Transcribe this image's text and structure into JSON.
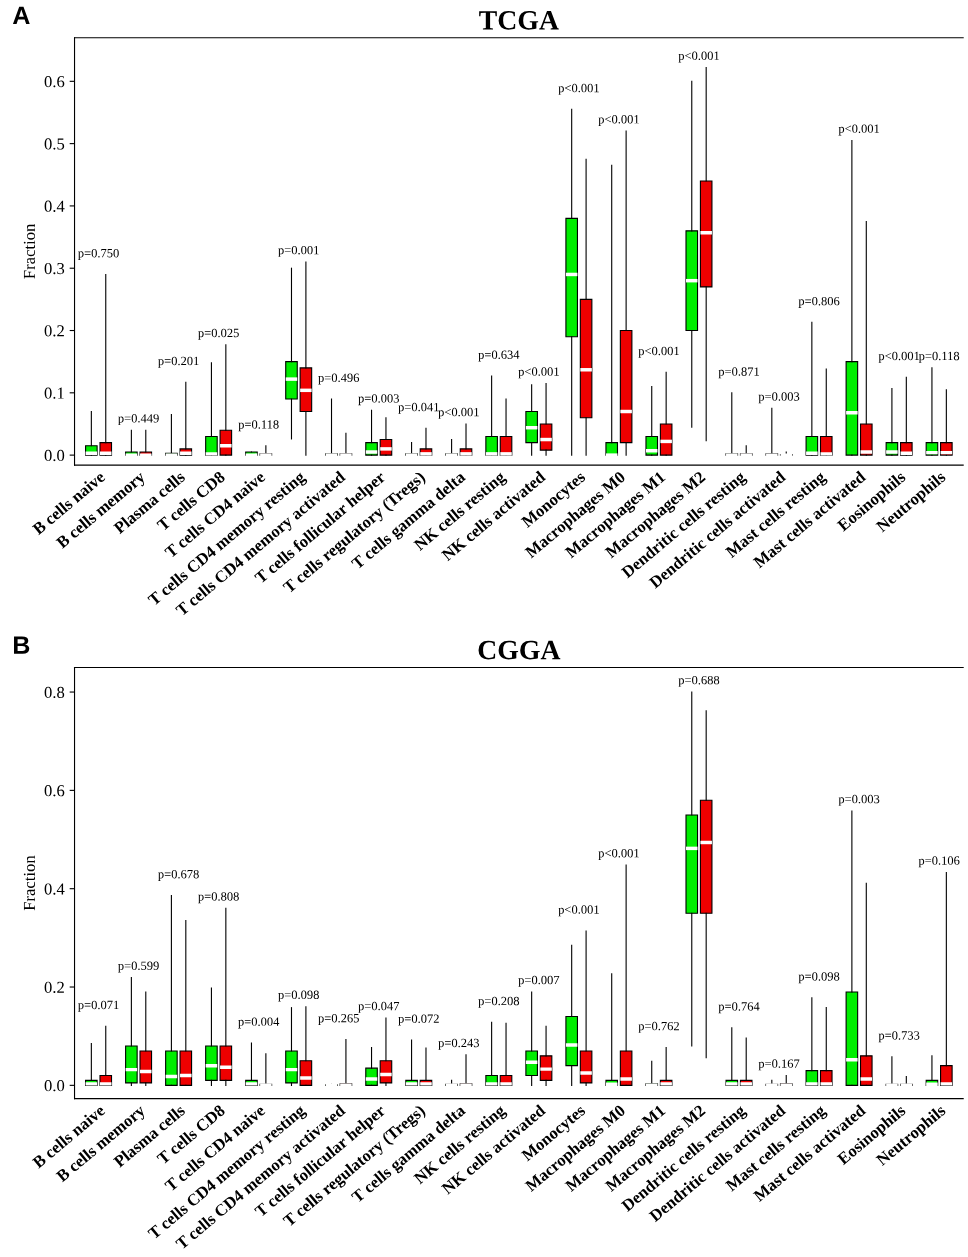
{
  "chart_data": [
    {
      "type": "box",
      "title": "TCGA",
      "ylabel": "Fraction",
      "categories": [
        "B cells naive",
        "B cells memory",
        "Plasma cells",
        "T cells CD8",
        "T cells CD4 naive",
        "T cells CD4 memory resting",
        "T cells CD4 memory activated",
        "T cells follicular helper",
        "T cells regulatory (Tregs)",
        "T cells gamma delta",
        "NK cells resting",
        "NK cells activated",
        "Monocytes",
        "Macrophages M0",
        "Macrophages M1",
        "Macrophages M2",
        "Dendritic cells resting",
        "Dendritic cells activated",
        "Mast cells resting",
        "Mast cells activated",
        "Eosinophils",
        "Neutrophils"
      ],
      "subtitle": "A",
      "ylim": [
        -0.016,
        0.67
      ],
      "yticks": [
        {
          "value": 0,
          "label": "0.0"
        },
        0.1,
        0.2,
        0.3,
        0.4,
        0.5,
        0.6
      ],
      "series": [
        {
          "color": "#00ee00",
          "boxes": [
            {
              "low": 0,
              "q1": 0,
              "median": 0.003,
              "q3": 0.015,
              "high": 0.07
            },
            {
              "low": 0,
              "q1": 0,
              "median": 0.0,
              "q3": 0.005,
              "high": 0.04
            },
            {
              "low": 0,
              "q1": 0,
              "median": 0.0,
              "q3": 0.003,
              "high": 0.065
            },
            {
              "low": 0,
              "q1": 0,
              "median": 0.002,
              "q3": 0.03,
              "high": 0.148
            },
            {
              "low": 0,
              "q1": 0,
              "median": 0,
              "q3": 0.005,
              "high": 0.005
            },
            {
              "low": 0.026,
              "q1": 0.09,
              "median": 0.122,
              "q3": 0.15,
              "high": 0.3
            },
            {
              "low": 0,
              "q1": 0,
              "median": 0,
              "q3": 0.002,
              "high": 0.09
            },
            {
              "low": 0,
              "q1": 0,
              "median": 0.005,
              "q3": 0.02,
              "high": 0.072
            },
            {
              "low": 0,
              "q1": 0,
              "median": 0,
              "q3": 0.002,
              "high": 0.02
            },
            {
              "low": 0,
              "q1": 0,
              "median": 0,
              "q3": 0.002,
              "high": 0.025
            },
            {
              "low": 0,
              "q1": 0,
              "median": 0.002,
              "q3": 0.03,
              "high": 0.127
            },
            {
              "low": 0,
              "q1": 0.02,
              "median": 0.044,
              "q3": 0.07,
              "high": 0.113
            },
            {
              "low": 0,
              "q1": 0.19,
              "median": 0.29,
              "q3": 0.38,
              "high": 0.555
            },
            {
              "low": 0,
              "q1": 0,
              "median": 0.0,
              "q3": 0.02,
              "high": 0.465
            },
            {
              "low": 0,
              "q1": 0,
              "median": 0.007,
              "q3": 0.03,
              "high": 0.11
            },
            {
              "low": 0.045,
              "q1": 0.2,
              "median": 0.28,
              "q3": 0.36,
              "high": 0.6
            },
            {
              "low": 0,
              "q1": 0,
              "median": 0,
              "q3": 0.002,
              "high": 0.1
            },
            {
              "low": 0,
              "q1": 0,
              "median": 0,
              "q3": 0.002,
              "high": 0.075
            },
            {
              "low": 0,
              "q1": 0,
              "median": 0.003,
              "q3": 0.03,
              "high": 0.213
            },
            {
              "low": 0,
              "q1": 0,
              "median": 0.068,
              "q3": 0.15,
              "high": 0.505
            },
            {
              "low": 0,
              "q1": 0,
              "median": 0.005,
              "q3": 0.02,
              "high": 0.107
            },
            {
              "low": 0,
              "q1": 0,
              "median": 0.004,
              "q3": 0.02,
              "high": 0.14
            }
          ]
        },
        {
          "color": "#ee0000",
          "boxes": [
            {
              "low": 0,
              "q1": 0,
              "median": 0.003,
              "q3": 0.02,
              "high": 0.29
            },
            {
              "low": 0,
              "q1": 0,
              "median": 0.0,
              "q3": 0.005,
              "high": 0.04
            },
            {
              "low": 0,
              "q1": 0,
              "median": 0.003,
              "q3": 0.01,
              "high": 0.117
            },
            {
              "low": 0,
              "q1": 0,
              "median": 0.015,
              "q3": 0.04,
              "high": 0.177
            },
            {
              "low": 0,
              "q1": 0,
              "median": 0,
              "q3": 0.002,
              "high": 0.015
            },
            {
              "low": 0,
              "q1": 0.07,
              "median": 0.104,
              "q3": 0.14,
              "high": 0.31
            },
            {
              "low": 0,
              "q1": 0,
              "median": 0,
              "q3": 0.002,
              "high": 0.035
            },
            {
              "low": 0,
              "q1": 0,
              "median": 0.01,
              "q3": 0.025,
              "high": 0.06
            },
            {
              "low": 0,
              "q1": 0,
              "median": 0.002,
              "q3": 0.01,
              "high": 0.043
            },
            {
              "low": 0,
              "q1": 0,
              "median": 0.002,
              "q3": 0.01,
              "high": 0.05
            },
            {
              "low": 0,
              "q1": 0,
              "median": 0.002,
              "q3": 0.03,
              "high": 0.09
            },
            {
              "low": 0,
              "q1": 0.008,
              "median": 0.025,
              "q3": 0.05,
              "high": 0.115
            },
            {
              "low": 0,
              "q1": 0.06,
              "median": 0.137,
              "q3": 0.25,
              "high": 0.475
            },
            {
              "low": 0,
              "q1": 0.02,
              "median": 0.07,
              "q3": 0.2,
              "high": 0.52
            },
            {
              "low": 0,
              "q1": 0,
              "median": 0.022,
              "q3": 0.05,
              "high": 0.133
            },
            {
              "low": 0.023,
              "q1": 0.27,
              "median": 0.357,
              "q3": 0.44,
              "high": 0.622
            },
            {
              "low": 0,
              "q1": 0,
              "median": 0,
              "q3": 0.002,
              "high": 0.015
            },
            {
              "low": 0,
              "q1": 0,
              "median": 0,
              "q3": 0.001,
              "high": 0.005
            },
            {
              "low": 0,
              "q1": 0,
              "median": 0.002,
              "q3": 0.03,
              "high": 0.138
            },
            {
              "low": 0,
              "q1": 0,
              "median": 0.005,
              "q3": 0.05,
              "high": 0.375
            },
            {
              "low": 0,
              "q1": 0,
              "median": 0.003,
              "q3": 0.02,
              "high": 0.125
            },
            {
              "low": 0,
              "q1": 0,
              "median": 0.004,
              "q3": 0.02,
              "high": 0.105
            }
          ]
        }
      ],
      "annotations": [
        "p=0.750",
        "p=0.449",
        "p=0.201",
        "p=0.025",
        "p=0.118",
        "p=0.001",
        "p=0.496",
        "p=0.003",
        "p=0.041",
        "p<0.001",
        "p=0.634",
        "p<0.001",
        "p<0.001",
        "p<0.001",
        "p<0.001",
        "p<0.001",
        "p=0.871",
        "p=0.003",
        "p=0.806",
        "p<0.001",
        "p<0.001",
        "p=0.118"
      ]
    },
    {
      "type": "box",
      "title": "CGGA",
      "ylabel": "Fraction",
      "categories": [
        "B cells naive",
        "B cells memory",
        "Plasma cells",
        "T cells CD8",
        "T cells CD4 naive",
        "T cells CD4 memory resting",
        "T cells CD4 memory activated",
        "T cells follicular helper",
        "T cells regulatory (Tregs)",
        "T cells gamma delta",
        "NK cells resting",
        "NK cells activated",
        "Monocytes",
        "Macrophages M0",
        "Macrophages M1",
        "Macrophages M2",
        "Dendritic cells resting",
        "Dendritic cells activated",
        "Mast cells resting",
        "Mast cells activated",
        "Eosinophils",
        "Neutrophils"
      ],
      "subtitle": "B",
      "ylim": [
        -0.027,
        0.85
      ],
      "yticks": [
        {
          "value": 0,
          "label": "0.0"
        },
        0.2,
        0.4,
        0.6,
        0.8
      ],
      "series": [
        {
          "color": "#00ee00",
          "boxes": [
            {
              "low": 0,
              "q1": 0,
              "median": 0.003,
              "q3": 0.01,
              "high": 0.085
            },
            {
              "low": 0,
              "q1": 0.005,
              "median": 0.032,
              "q3": 0.08,
              "high": 0.219
            },
            {
              "low": 0,
              "q1": 0,
              "median": 0.018,
              "q3": 0.07,
              "high": 0.386
            },
            {
              "low": 0,
              "q1": 0.01,
              "median": 0.04,
              "q3": 0.08,
              "high": 0.198
            },
            {
              "low": 0,
              "q1": 0,
              "median": 0.003,
              "q3": 0.01,
              "high": 0.086
            },
            {
              "low": 0,
              "q1": 0.005,
              "median": 0.032,
              "q3": 0.07,
              "high": 0.158
            },
            {
              "low": 0,
              "q1": 0,
              "median": 0,
              "q3": 0.001,
              "high": 0.002
            },
            {
              "low": 0,
              "q1": 0,
              "median": 0.013,
              "q3": 0.035,
              "high": 0.077
            },
            {
              "low": 0,
              "q1": 0,
              "median": 0.003,
              "q3": 0.01,
              "high": 0.092
            },
            {
              "low": 0,
              "q1": 0,
              "median": 0,
              "q3": 0.002,
              "high": 0.01
            },
            {
              "low": 0,
              "q1": 0,
              "median": 0.003,
              "q3": 0.02,
              "high": 0.128
            },
            {
              "low": 0,
              "q1": 0.02,
              "median": 0.047,
              "q3": 0.07,
              "high": 0.19
            },
            {
              "low": 0,
              "q1": 0.04,
              "median": 0.082,
              "q3": 0.14,
              "high": 0.285
            },
            {
              "low": 0,
              "q1": 0,
              "median": 0.002,
              "q3": 0.01,
              "high": 0.227
            },
            {
              "low": 0,
              "q1": 0,
              "median": 0,
              "q3": 0.003,
              "high": 0.049
            },
            {
              "low": 0.08,
              "q1": 0.35,
              "median": 0.482,
              "q3": 0.55,
              "high": 0.8
            },
            {
              "low": 0,
              "q1": 0,
              "median": 0.003,
              "q3": 0.01,
              "high": 0.117
            },
            {
              "low": 0,
              "q1": 0,
              "median": 0,
              "q3": 0.002,
              "high": 0.01
            },
            {
              "low": 0,
              "q1": 0,
              "median": 0.003,
              "q3": 0.03,
              "high": 0.178
            },
            {
              "low": 0,
              "q1": 0,
              "median": 0.052,
              "q3": 0.19,
              "high": 0.558
            },
            {
              "low": 0,
              "q1": 0,
              "median": 0,
              "q3": 0.002,
              "high": 0.058
            },
            {
              "low": 0,
              "q1": 0,
              "median": 0.002,
              "q3": 0.01,
              "high": 0.06
            }
          ]
        },
        {
          "color": "#ee0000",
          "boxes": [
            {
              "low": 0,
              "q1": 0,
              "median": 0.003,
              "q3": 0.02,
              "high": 0.12
            },
            {
              "low": 0,
              "q1": 0.005,
              "median": 0.028,
              "q3": 0.07,
              "high": 0.19
            },
            {
              "low": 0,
              "q1": 0,
              "median": 0.02,
              "q3": 0.07,
              "high": 0.335
            },
            {
              "low": 0,
              "q1": 0.01,
              "median": 0.037,
              "q3": 0.08,
              "high": 0.36
            },
            {
              "low": 0,
              "q1": 0,
              "median": 0,
              "q3": 0.002,
              "high": 0.064
            },
            {
              "low": 0,
              "q1": 0,
              "median": 0.015,
              "q3": 0.05,
              "high": 0.16
            },
            {
              "low": 0,
              "q1": 0,
              "median": 0,
              "q3": 0.003,
              "high": 0.093
            },
            {
              "low": 0,
              "q1": 0.005,
              "median": 0.022,
              "q3": 0.05,
              "high": 0.137
            },
            {
              "low": 0,
              "q1": 0,
              "median": 0.003,
              "q3": 0.01,
              "high": 0.076
            },
            {
              "low": 0,
              "q1": 0,
              "median": 0,
              "q3": 0.003,
              "high": 0.062
            },
            {
              "low": 0,
              "q1": 0,
              "median": 0.003,
              "q3": 0.02,
              "high": 0.126
            },
            {
              "low": 0,
              "q1": 0.01,
              "median": 0.033,
              "q3": 0.06,
              "high": 0.12
            },
            {
              "low": 0,
              "q1": 0.005,
              "median": 0.025,
              "q3": 0.07,
              "high": 0.314
            },
            {
              "low": 0,
              "q1": 0,
              "median": 0.013,
              "q3": 0.07,
              "high": 0.448
            },
            {
              "low": 0,
              "q1": 0,
              "median": 0.003,
              "q3": 0.01,
              "high": 0.077
            },
            {
              "low": 0.056,
              "q1": 0.35,
              "median": 0.494,
              "q3": 0.58,
              "high": 0.762
            },
            {
              "low": 0,
              "q1": 0,
              "median": 0.003,
              "q3": 0.01,
              "high": 0.096
            },
            {
              "low": 0,
              "q1": 0,
              "median": 0,
              "q3": 0.003,
              "high": 0.02
            },
            {
              "low": 0,
              "q1": 0,
              "median": 0.003,
              "q3": 0.03,
              "high": 0.158
            },
            {
              "low": 0,
              "q1": 0,
              "median": 0.013,
              "q3": 0.06,
              "high": 0.411
            },
            {
              "low": 0,
              "q1": 0,
              "median": 0,
              "q3": 0.002,
              "high": 0.018
            },
            {
              "low": 0,
              "q1": 0,
              "median": 0.003,
              "q3": 0.04,
              "high": 0.433
            }
          ]
        }
      ],
      "annotations": [
        "p=0.071",
        "p=0.599",
        "p=0.678",
        "p=0.808",
        "p=0.004",
        "p=0.098",
        "p=0.265",
        "p=0.047",
        "p=0.072",
        "p=0.243",
        "p=0.208",
        "p=0.007",
        "p<0.001",
        "p<0.001",
        "p=0.762",
        "p=0.688",
        "p=0.764",
        "p=0.167",
        "p=0.098",
        "p=0.003",
        "p=0.733",
        "p=0.106"
      ]
    }
  ]
}
